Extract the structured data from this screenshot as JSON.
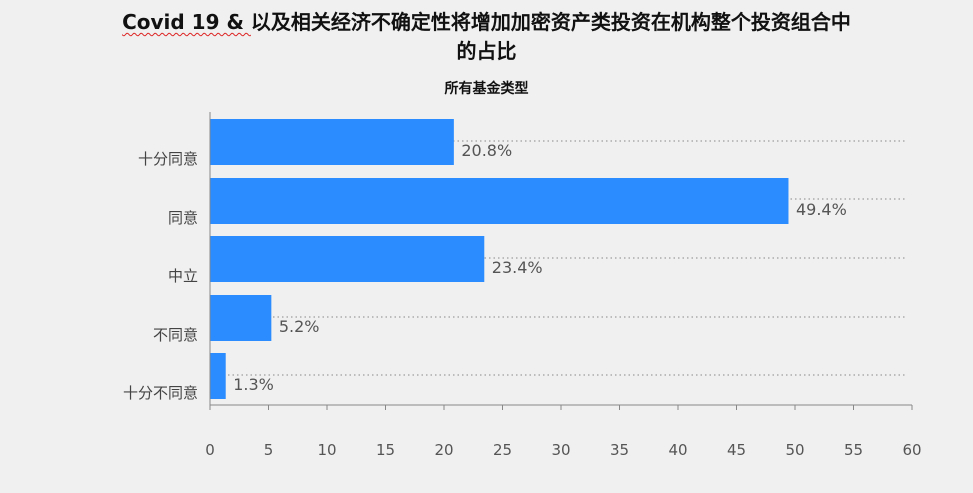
{
  "title": {
    "prefix": "Covid 19 & ",
    "line1_rest": "以及相关经济不确定性将增加加密资产类投资在机构整个投资组合中",
    "line2": "的占比"
  },
  "chart_data": {
    "type": "bar",
    "orientation": "horizontal",
    "title": "所有基金类型",
    "categories": [
      "十分同意",
      "同意",
      "中立",
      "不同意",
      "十分不同意"
    ],
    "values": [
      20.8,
      49.4,
      23.4,
      5.2,
      1.3
    ],
    "value_labels": [
      "20.8%",
      "49.4%",
      "23.4%",
      "5.2%",
      "1.3%"
    ],
    "xlim": [
      0,
      60
    ],
    "xticks": [
      0,
      5,
      10,
      15,
      20,
      25,
      30,
      35,
      40,
      45,
      50,
      55,
      60
    ],
    "bar_color": "#2b8cff",
    "grid": "dotted horizontal separators",
    "legend": "none"
  }
}
